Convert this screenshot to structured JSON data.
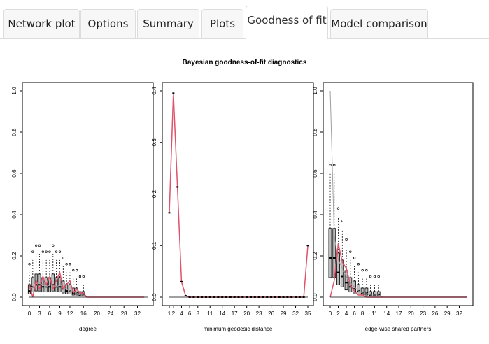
{
  "tabs": [
    {
      "label": "Network plot",
      "active": false
    },
    {
      "label": "Options",
      "active": false
    },
    {
      "label": "Summary",
      "active": false
    },
    {
      "label": "Plots",
      "active": false
    },
    {
      "label": "Goodness of fit",
      "active": true
    },
    {
      "label": "Model comparison",
      "active": false
    }
  ],
  "colors": {
    "observed": "#DF536B",
    "simulated": "#9E9E9E",
    "box_fill": "#BEBEBE"
  },
  "chart_data": [
    {
      "type": "box",
      "title": "Bayesian goodness-of-fit diagnostics",
      "xlabel": "degree",
      "ylabel": "",
      "ylim": [
        0,
        1
      ],
      "yticks": [
        "0.0",
        "0.2",
        "0.4",
        "0.6",
        "0.8",
        "1.0"
      ],
      "xticks": [
        "0",
        "3",
        "6",
        "9",
        "12",
        "16",
        "20",
        "24",
        "28",
        "32"
      ],
      "categories": [
        0,
        1,
        2,
        3,
        4,
        5,
        6,
        7,
        8,
        9,
        10,
        11,
        12,
        13,
        14,
        15,
        16,
        17,
        18,
        19,
        20,
        21,
        22,
        23,
        24,
        25,
        26,
        27,
        28,
        29,
        30,
        31,
        32,
        33,
        34
      ],
      "median": [
        0.03,
        0.05,
        0.06,
        0.06,
        0.05,
        0.05,
        0.05,
        0.06,
        0.05,
        0.05,
        0.04,
        0.03,
        0.03,
        0.02,
        0.02,
        0.01,
        0.01,
        0,
        0,
        0,
        0,
        0,
        0,
        0,
        0,
        0,
        0,
        0,
        0,
        0,
        0,
        0,
        0,
        0,
        0
      ],
      "observed": [
        0.06,
        0.0,
        0.08,
        0.04,
        0.1,
        0.06,
        0.1,
        0.04,
        0.08,
        0.12,
        0.04,
        0.06,
        0.08,
        0.02,
        0.04,
        0.02,
        0.02,
        0,
        0,
        0,
        0,
        0,
        0,
        0,
        0,
        0,
        0,
        0,
        0,
        0,
        0,
        0,
        0,
        0,
        0
      ],
      "simulated": [
        0.04,
        0.05,
        0.07,
        0.07,
        0.06,
        0.05,
        0.06,
        0.06,
        0.05,
        0.06,
        0.05,
        0.04,
        0.03,
        0.03,
        0.02,
        0.01,
        0.01,
        0,
        0,
        0,
        0,
        0,
        0,
        0,
        0,
        0,
        0,
        0,
        0,
        0,
        0,
        0,
        0,
        0,
        0
      ]
    },
    {
      "type": "box",
      "xlabel": "minimum geodesic distance",
      "ylabel": "",
      "ylim": [
        0,
        0.44
      ],
      "yticks": [
        "0.0",
        "0.1",
        "0.2",
        "0.3",
        "0.4"
      ],
      "xticks": [
        "1",
        "2",
        "4",
        "6",
        "8",
        "11",
        "14",
        "17",
        "20",
        "23",
        "26",
        "29",
        "32",
        "35"
      ],
      "categories": [
        "1",
        "2",
        "3",
        "4",
        "5",
        "6",
        "7",
        "8",
        "9",
        "10",
        "11",
        "12",
        "13",
        "14",
        "15",
        "16",
        "17",
        "18",
        "19",
        "20",
        "21",
        "22",
        "23",
        "24",
        "25",
        "26",
        "27",
        "28",
        "29",
        "30",
        "31",
        "32",
        "33",
        "34",
        "Inf"
      ],
      "observed": [
        0.18,
        0.435,
        0.235,
        0.033,
        0.003,
        0,
        0,
        0,
        0,
        0,
        0,
        0,
        0,
        0,
        0,
        0,
        0,
        0,
        0,
        0,
        0,
        0,
        0,
        0,
        0,
        0,
        0,
        0,
        0,
        0,
        0,
        0,
        0,
        0,
        0.11
      ],
      "simulated": [
        0.182,
        0.437,
        0.233,
        0.032,
        0.003,
        0,
        0,
        0,
        0,
        0,
        0,
        0,
        0,
        0,
        0,
        0,
        0,
        0,
        0,
        0,
        0,
        0,
        0,
        0,
        0,
        0,
        0,
        0,
        0,
        0,
        0,
        0,
        0,
        0,
        0.11
      ]
    },
    {
      "type": "box",
      "xlabel": "edge-wise shared partners",
      "ylabel": "",
      "ylim": [
        0,
        1
      ],
      "yticks": [
        "0.0",
        "0.2",
        "0.4",
        "0.6",
        "0.8",
        "1.0"
      ],
      "xticks": [
        "0",
        "2",
        "4",
        "6",
        "8",
        "11",
        "14",
        "17",
        "20",
        "23",
        "26",
        "29",
        "32"
      ],
      "categories": [
        0,
        1,
        2,
        3,
        4,
        5,
        6,
        7,
        8,
        9,
        10,
        11,
        12,
        13,
        14,
        15,
        16,
        17,
        18,
        19,
        20,
        21,
        22,
        23,
        24,
        25,
        26,
        27,
        28,
        29,
        30,
        31,
        32,
        33,
        34
      ],
      "median": [
        0.19,
        0.19,
        0.12,
        0.1,
        0.07,
        0.05,
        0.04,
        0.03,
        0.02,
        0.02,
        0.01,
        0.01,
        0.01,
        0,
        0,
        0,
        0,
        0,
        0,
        0,
        0,
        0,
        0,
        0,
        0,
        0,
        0,
        0,
        0,
        0,
        0,
        0,
        0,
        0,
        0
      ],
      "observed": [
        0.0,
        0.08,
        0.26,
        0.17,
        0.14,
        0.06,
        0.03,
        0.01,
        0.01,
        0,
        0,
        0,
        0,
        0,
        0,
        0,
        0,
        0,
        0,
        0,
        0,
        0,
        0,
        0,
        0,
        0,
        0,
        0,
        0,
        0,
        0,
        0,
        0,
        0,
        0
      ],
      "simulated": [
        1.0,
        0.3,
        0.18,
        0.14,
        0.1,
        0.07,
        0.05,
        0.03,
        0.02,
        0.02,
        0.01,
        0.01,
        0.01,
        0,
        0,
        0,
        0,
        0,
        0,
        0,
        0,
        0,
        0,
        0,
        0,
        0,
        0,
        0,
        0,
        0,
        0,
        0,
        0,
        0,
        0
      ]
    }
  ]
}
